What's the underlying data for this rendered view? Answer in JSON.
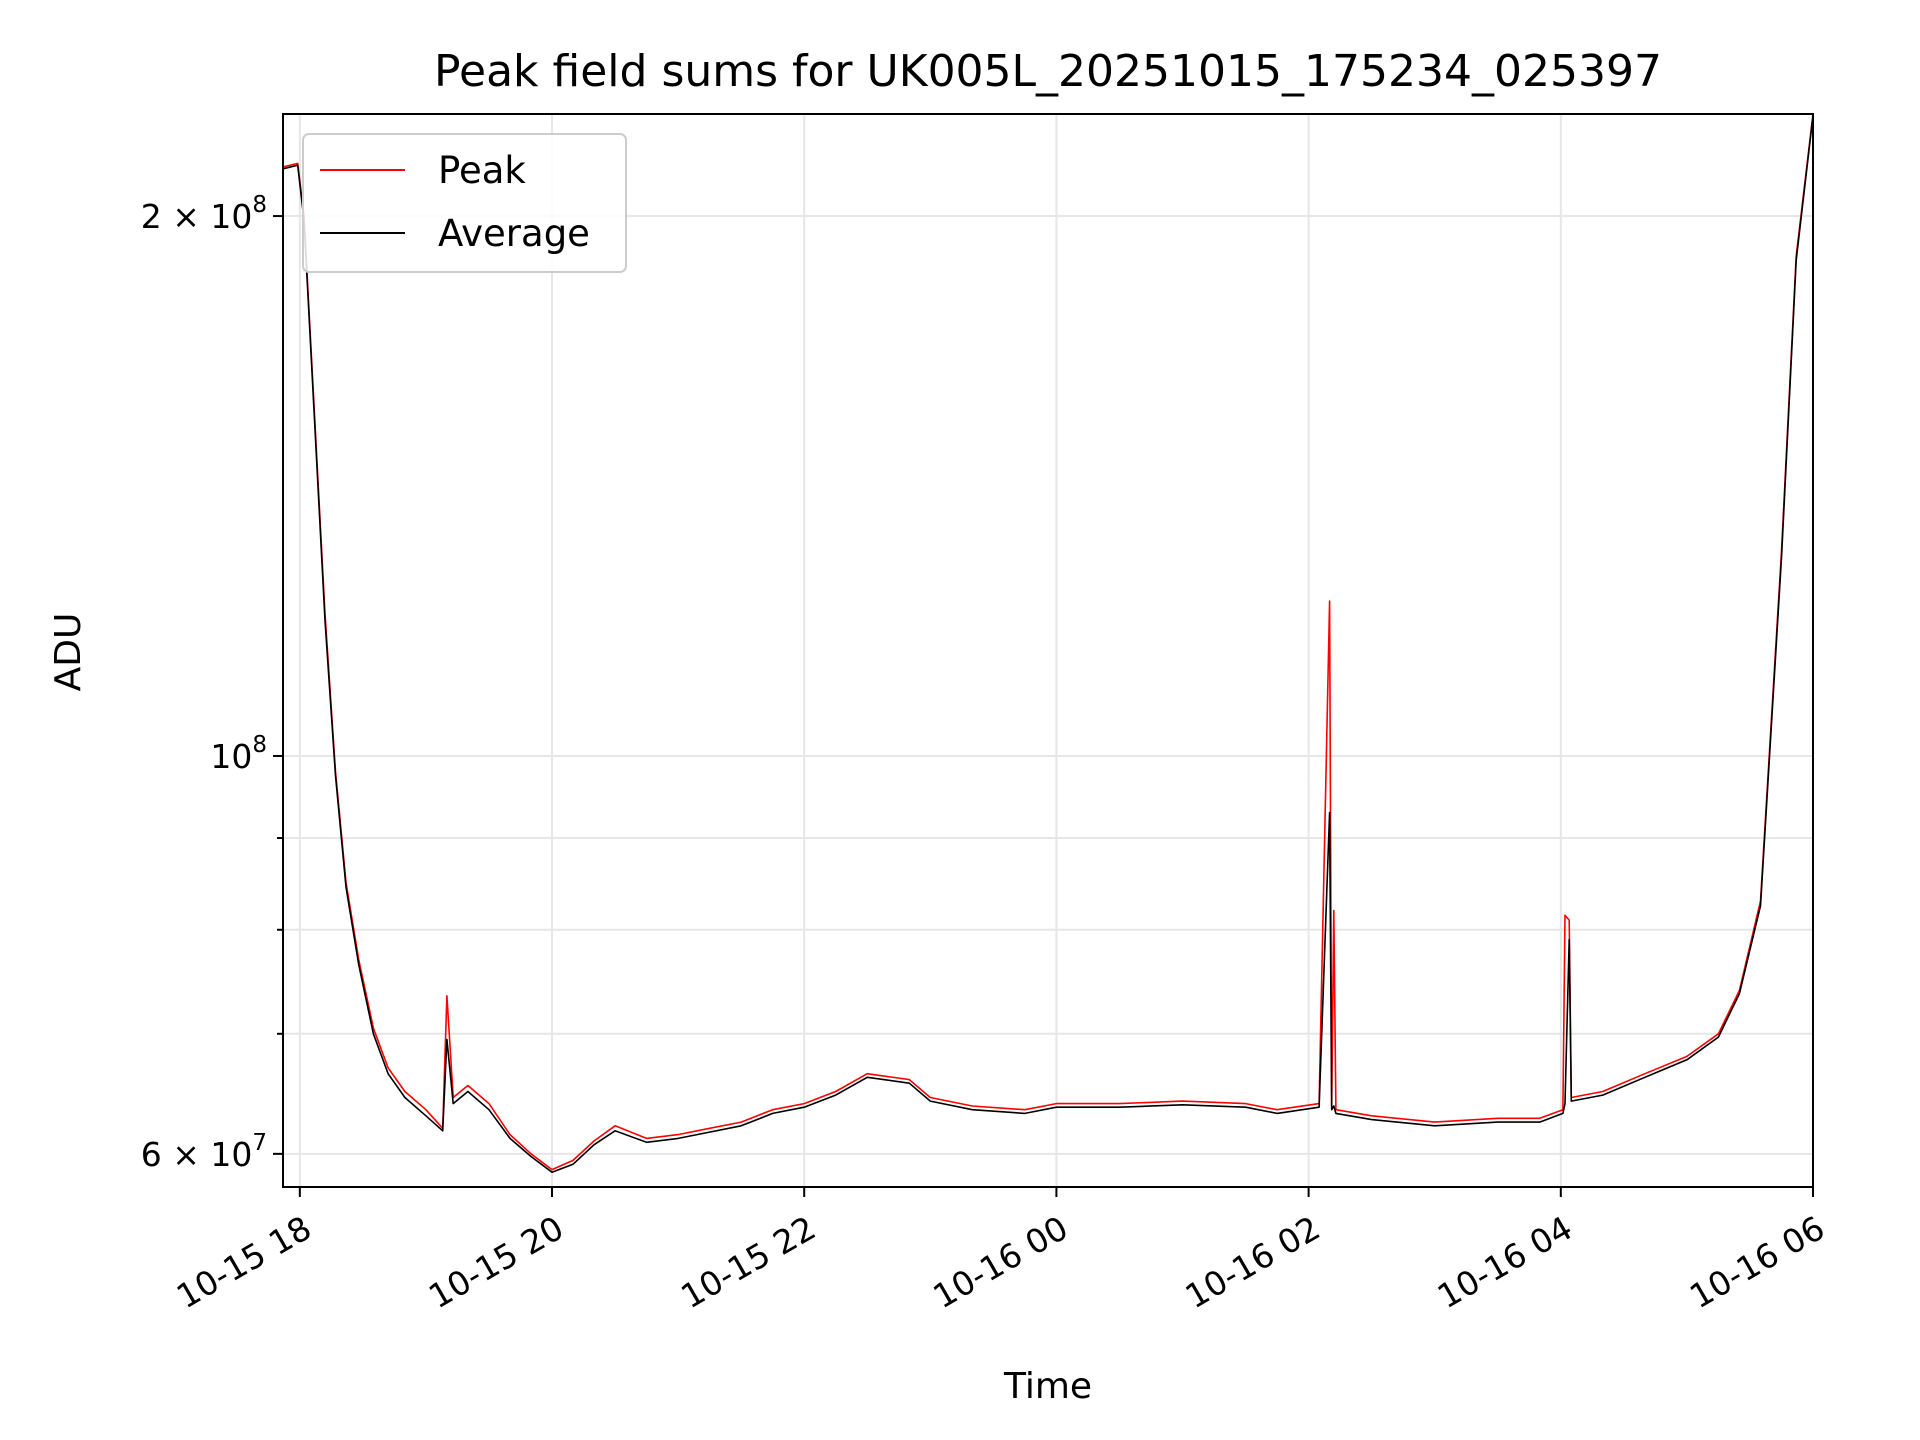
{
  "chart_data": {
    "type": "line",
    "title": "Peak field sums for UK005L_20251015_175234_025397",
    "xlabel": "Time",
    "ylabel": "ADU",
    "y_scale": "log",
    "grid": true,
    "legend_position": "top-left",
    "xlim": [
      "2025-10-15T17:52",
      "2025-10-16T06:00"
    ],
    "ylim": [
      57500000,
      228000000
    ],
    "x_ticks": [
      {
        "value": "2025-10-15T18:00",
        "label": "10-15 18"
      },
      {
        "value": "2025-10-15T20:00",
        "label": "10-15 20"
      },
      {
        "value": "2025-10-15T22:00",
        "label": "10-15 22"
      },
      {
        "value": "2025-10-16T00:00",
        "label": "10-16 00"
      },
      {
        "value": "2025-10-16T02:00",
        "label": "10-16 02"
      },
      {
        "value": "2025-10-16T04:00",
        "label": "10-16 04"
      },
      {
        "value": "2025-10-16T06:00",
        "label": "10-16 06"
      }
    ],
    "y_ticks": [
      {
        "value": 200000000,
        "base": "2 × 10",
        "exp": "8"
      },
      {
        "value": 100000000,
        "base": "10",
        "exp": "8"
      },
      {
        "value": 60000000,
        "base": "6 × 10",
        "exp": "7"
      }
    ],
    "y_minor_ticks": [
      70000000,
      80000000,
      90000000
    ],
    "series": [
      {
        "name": "Peak",
        "color": "#ff0000",
        "points": [
          [
            "2025-10-15T17:52",
            213000000
          ],
          [
            "2025-10-15T17:59",
            214000000
          ],
          [
            "2025-10-15T18:02",
            200000000
          ],
          [
            "2025-10-15T18:07",
            155000000
          ],
          [
            "2025-10-15T18:12",
            120000000
          ],
          [
            "2025-10-15T18:17",
            98000000
          ],
          [
            "2025-10-15T18:22",
            85000000
          ],
          [
            "2025-10-15T18:28",
            77000000
          ],
          [
            "2025-10-15T18:35",
            70500000
          ],
          [
            "2025-10-15T18:42",
            67000000
          ],
          [
            "2025-10-15T18:50",
            65000000
          ],
          [
            "2025-10-15T19:00",
            63500000
          ],
          [
            "2025-10-15T19:08",
            62000000
          ],
          [
            "2025-10-15T19:10",
            73500000
          ],
          [
            "2025-10-15T19:13",
            64500000
          ],
          [
            "2025-10-15T19:20",
            65500000
          ],
          [
            "2025-10-15T19:30",
            64000000
          ],
          [
            "2025-10-15T19:40",
            61500000
          ],
          [
            "2025-10-15T19:50",
            60000000
          ],
          [
            "2025-10-15T20:00",
            58800000
          ],
          [
            "2025-10-15T20:10",
            59500000
          ],
          [
            "2025-10-15T20:20",
            61000000
          ],
          [
            "2025-10-15T20:30",
            62200000
          ],
          [
            "2025-10-15T20:45",
            61200000
          ],
          [
            "2025-10-15T21:00",
            61500000
          ],
          [
            "2025-10-15T21:15",
            62000000
          ],
          [
            "2025-10-15T21:30",
            62500000
          ],
          [
            "2025-10-15T21:45",
            63500000
          ],
          [
            "2025-10-15T22:00",
            64000000
          ],
          [
            "2025-10-15T22:15",
            65000000
          ],
          [
            "2025-10-15T22:30",
            66500000
          ],
          [
            "2025-10-15T22:50",
            66000000
          ],
          [
            "2025-10-15T23:00",
            64500000
          ],
          [
            "2025-10-15T23:20",
            63800000
          ],
          [
            "2025-10-15T23:45",
            63500000
          ],
          [
            "2025-10-16T00:00",
            64000000
          ],
          [
            "2025-10-16T00:30",
            64000000
          ],
          [
            "2025-10-16T01:00",
            64200000
          ],
          [
            "2025-10-16T01:30",
            64000000
          ],
          [
            "2025-10-16T01:45",
            63500000
          ],
          [
            "2025-10-16T02:05",
            64000000
          ],
          [
            "2025-10-16T02:10",
            122000000
          ],
          [
            "2025-10-16T02:11",
            63800000
          ],
          [
            "2025-10-16T02:12",
            82000000
          ],
          [
            "2025-10-16T02:13",
            63500000
          ],
          [
            "2025-10-16T02:30",
            63000000
          ],
          [
            "2025-10-16T03:00",
            62500000
          ],
          [
            "2025-10-16T03:30",
            62800000
          ],
          [
            "2025-10-16T03:50",
            62800000
          ],
          [
            "2025-10-16T04:01",
            63500000
          ],
          [
            "2025-10-16T04:02",
            81500000
          ],
          [
            "2025-10-16T04:04",
            81000000
          ],
          [
            "2025-10-16T04:05",
            64500000
          ],
          [
            "2025-10-16T04:20",
            65000000
          ],
          [
            "2025-10-16T04:40",
            66500000
          ],
          [
            "2025-10-16T05:00",
            68000000
          ],
          [
            "2025-10-16T05:15",
            70000000
          ],
          [
            "2025-10-16T05:25",
            74000000
          ],
          [
            "2025-10-16T05:35",
            83000000
          ],
          [
            "2025-10-16T05:45",
            130000000
          ],
          [
            "2025-10-16T05:52",
            190000000
          ],
          [
            "2025-10-16T06:00",
            228000000
          ]
        ]
      },
      {
        "name": "Average",
        "color": "#000000",
        "points": [
          [
            "2025-10-15T17:52",
            212500000
          ],
          [
            "2025-10-15T17:59",
            213500000
          ],
          [
            "2025-10-15T18:02",
            199000000
          ],
          [
            "2025-10-15T18:07",
            154000000
          ],
          [
            "2025-10-15T18:12",
            119000000
          ],
          [
            "2025-10-15T18:17",
            97500000
          ],
          [
            "2025-10-15T18:22",
            84500000
          ],
          [
            "2025-10-15T18:28",
            76500000
          ],
          [
            "2025-10-15T18:35",
            70000000
          ],
          [
            "2025-10-15T18:42",
            66500000
          ],
          [
            "2025-10-15T18:50",
            64500000
          ],
          [
            "2025-10-15T19:00",
            63000000
          ],
          [
            "2025-10-15T19:08",
            61800000
          ],
          [
            "2025-10-15T19:10",
            69500000
          ],
          [
            "2025-10-15T19:13",
            64000000
          ],
          [
            "2025-10-15T19:20",
            65000000
          ],
          [
            "2025-10-15T19:30",
            63500000
          ],
          [
            "2025-10-15T19:40",
            61200000
          ],
          [
            "2025-10-15T19:50",
            59800000
          ],
          [
            "2025-10-15T20:00",
            58600000
          ],
          [
            "2025-10-15T20:10",
            59200000
          ],
          [
            "2025-10-15T20:20",
            60700000
          ],
          [
            "2025-10-15T20:30",
            61800000
          ],
          [
            "2025-10-15T20:45",
            60900000
          ],
          [
            "2025-10-15T21:00",
            61200000
          ],
          [
            "2025-10-15T21:15",
            61700000
          ],
          [
            "2025-10-15T21:30",
            62200000
          ],
          [
            "2025-10-15T21:45",
            63200000
          ],
          [
            "2025-10-15T22:00",
            63700000
          ],
          [
            "2025-10-15T22:15",
            64700000
          ],
          [
            "2025-10-15T22:30",
            66200000
          ],
          [
            "2025-10-15T22:50",
            65700000
          ],
          [
            "2025-10-15T23:00",
            64200000
          ],
          [
            "2025-10-15T23:20",
            63500000
          ],
          [
            "2025-10-15T23:45",
            63200000
          ],
          [
            "2025-10-16T00:00",
            63700000
          ],
          [
            "2025-10-16T00:30",
            63700000
          ],
          [
            "2025-10-16T01:00",
            63900000
          ],
          [
            "2025-10-16T01:30",
            63700000
          ],
          [
            "2025-10-16T01:45",
            63200000
          ],
          [
            "2025-10-16T02:05",
            63700000
          ],
          [
            "2025-10-16T02:10",
            93000000
          ],
          [
            "2025-10-16T02:11",
            63500000
          ],
          [
            "2025-10-16T02:12",
            63800000
          ],
          [
            "2025-10-16T02:13",
            63200000
          ],
          [
            "2025-10-16T02:30",
            62700000
          ],
          [
            "2025-10-16T03:00",
            62200000
          ],
          [
            "2025-10-16T03:30",
            62500000
          ],
          [
            "2025-10-16T03:50",
            62500000
          ],
          [
            "2025-10-16T04:01",
            63200000
          ],
          [
            "2025-10-16T04:02",
            64000000
          ],
          [
            "2025-10-16T04:04",
            79000000
          ],
          [
            "2025-10-16T04:05",
            64200000
          ],
          [
            "2025-10-16T04:20",
            64700000
          ],
          [
            "2025-10-16T04:40",
            66200000
          ],
          [
            "2025-10-16T05:00",
            67700000
          ],
          [
            "2025-10-16T05:15",
            69700000
          ],
          [
            "2025-10-16T05:25",
            73700000
          ],
          [
            "2025-10-16T05:35",
            82500000
          ],
          [
            "2025-10-16T05:45",
            129000000
          ],
          [
            "2025-10-16T05:52",
            189000000
          ],
          [
            "2025-10-16T06:00",
            227500000
          ]
        ]
      }
    ]
  }
}
